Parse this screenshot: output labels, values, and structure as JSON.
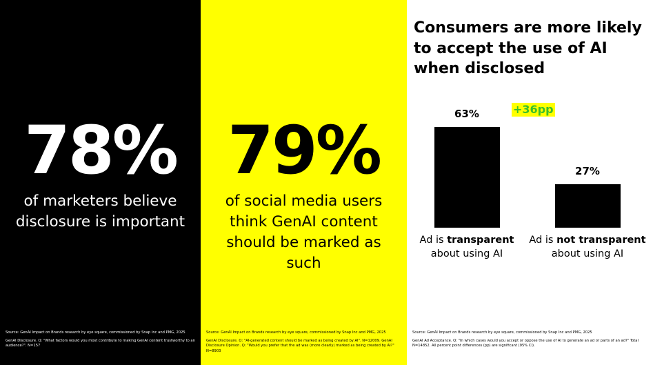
{
  "panel1": {
    "stat": "78%",
    "caption": "of marketers believe disclosure is important",
    "source": "Source: GenAI Impact on Brands research by eye square, commissioned by Snap Inc and PMG, 2025",
    "note": "GenAI Disclosure. Q: \"What factors would you most contribute to making GenAI content trustworthy to an audience?\". N=157"
  },
  "panel2": {
    "stat": "79%",
    "caption": "of social media users think GenAI content should be marked as such",
    "source": "Source: GenAI Impact on Brands research by eye square, commissioned by Snap Inc and PMG, 2025",
    "note": "GenAI Disclosure. Q: \"AI-generated content should be marked as being created by AI\". N=12009. GenAI Disclosure Opinion. Q: \"Would you prefer that the ad was (more clearly) marked as being created by AI?\" N=8903"
  },
  "panel3": {
    "title": "Consumers are more likely to accept the use of AI when disclosed",
    "source": "Source: GenAI Impact on Brands research by eye square, commissioned by Snap Inc and PMG, 2025",
    "note": "GenAI Ad Acceptance. Q: \"In which cases would you accept or oppose the use of AI to generate an ad or parts of an ad?\" Total N=14852. All percent point differences (pp) are significant (95% CI)."
  },
  "colors": {
    "black": "#000000",
    "yellow": "#FFFF00",
    "white": "#FFFFFF",
    "diff_text": "#3bbf2a"
  },
  "chart_data": {
    "type": "bar",
    "title": "Consumers are more likely to accept the use of AI when disclosed",
    "categories": [
      "Ad is transparent about using AI",
      "Ad is not transparent about using AI"
    ],
    "category_parts": [
      {
        "pre": "Ad is ",
        "bold": "transparent",
        "post": "about using AI"
      },
      {
        "pre": "Ad is ",
        "bold": "not transparent",
        "post": "about using AI"
      }
    ],
    "values": [
      63,
      27
    ],
    "value_labels": [
      "63%",
      "27%"
    ],
    "difference_label": "+36pp",
    "ylim": [
      0,
      63
    ],
    "bar_color": "#000000"
  }
}
